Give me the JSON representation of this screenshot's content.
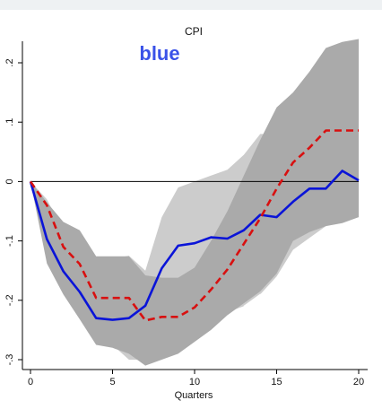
{
  "chart_data": {
    "type": "line",
    "title": "CPI",
    "xlabel": "Quarters",
    "ylabel": "",
    "annotation": "blue",
    "xlim": [
      0,
      20
    ],
    "ylim": [
      -0.31,
      0.25
    ],
    "x_ticks": [
      0,
      5,
      10,
      15,
      20
    ],
    "x_tick_labels": [
      "0",
      "5",
      "10",
      "15",
      "20"
    ],
    "y_ticks": [
      0.2,
      0.1,
      0,
      -0.1,
      -0.2,
      -0.3
    ],
    "y_tick_labels": [
      ".2",
      ".1",
      "0",
      "-.1",
      "-.2",
      "-.3"
    ],
    "grid": false,
    "legend": "none",
    "zero_line": 0,
    "x": [
      0,
      1,
      2,
      3,
      4,
      5,
      6,
      7,
      8,
      9,
      10,
      11,
      12,
      13,
      14,
      15,
      16,
      17,
      18,
      19,
      20
    ],
    "series": [
      {
        "style": "solid",
        "color": "#0a14d8",
        "values": [
          0,
          -0.097,
          -0.151,
          -0.186,
          -0.23,
          -0.233,
          -0.23,
          -0.209,
          -0.146,
          -0.108,
          -0.104,
          -0.094,
          -0.096,
          -0.082,
          -0.056,
          -0.06,
          -0.034,
          -0.012,
          -0.012,
          0.018,
          0.002
        ]
      },
      {
        "style": "dashed",
        "color": "#d81010",
        "values": [
          0,
          -0.04,
          -0.11,
          -0.139,
          -0.196,
          -0.196,
          -0.196,
          -0.234,
          -0.228,
          -0.228,
          -0.212,
          -0.182,
          -0.148,
          -0.105,
          -0.062,
          -0.012,
          0.032,
          0.057,
          0.086,
          0.086,
          0.086
        ]
      }
    ],
    "bands": [
      {
        "color": "#cccccc",
        "upper": [
          0,
          -0.03,
          -0.085,
          -0.095,
          -0.13,
          -0.13,
          -0.125,
          -0.15,
          -0.06,
          -0.01,
          0.0,
          0.01,
          0.02,
          0.045,
          0.08,
          0.08,
          null,
          null,
          null,
          null,
          null
        ],
        "lower": [
          0,
          -0.13,
          -0.185,
          -0.23,
          -0.27,
          -0.275,
          -0.3,
          -0.3,
          -0.29,
          -0.28,
          -0.26,
          -0.24,
          -0.22,
          -0.21,
          -0.19,
          -0.16,
          -0.115,
          -0.095,
          -0.075,
          -0.06,
          -0.06
        ]
      },
      {
        "color": "#aaaaaa",
        "upper": [
          0,
          -0.035,
          -0.068,
          -0.082,
          -0.126,
          -0.126,
          -0.126,
          -0.158,
          -0.162,
          -0.162,
          -0.145,
          -0.1,
          -0.05,
          0.01,
          0.07,
          0.125,
          0.15,
          0.185,
          0.225,
          0.235,
          0.24
        ],
        "lower": [
          0,
          -0.138,
          -0.19,
          -0.232,
          -0.275,
          -0.28,
          -0.29,
          -0.31,
          -0.3,
          -0.29,
          -0.27,
          -0.25,
          -0.225,
          -0.205,
          -0.185,
          -0.155,
          -0.1,
          -0.085,
          -0.075,
          -0.07,
          -0.06
        ]
      }
    ],
    "faint_lines": [
      {
        "values": [
          null,
          null,
          null,
          null,
          null,
          null,
          null,
          null,
          null,
          null,
          null,
          null,
          null,
          -0.21,
          -0.19,
          -0.2,
          -0.185,
          -0.16,
          -0.16,
          -0.13,
          -0.15
        ]
      },
      {
        "values": [
          null,
          null,
          null,
          null,
          null,
          null,
          null,
          null,
          null,
          null,
          null,
          null,
          null,
          null,
          null,
          null,
          null,
          -0.15,
          -0.15,
          -0.15,
          -0.16
        ]
      }
    ]
  }
}
